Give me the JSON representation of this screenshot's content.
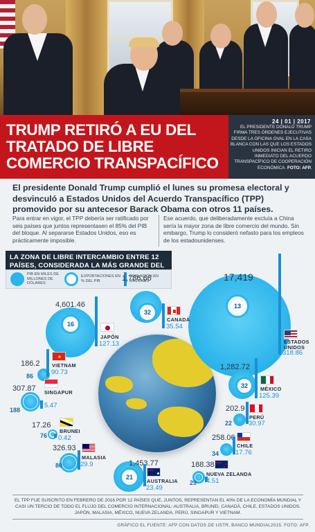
{
  "header": {
    "headline": "TRUMP RETIRÓ A EU DEL TRATADO DE LIBRE COMERCIO TRANSPACÍFICO",
    "date": "24 | 01 | 2017",
    "caption": "EL PRESIDENTE DONALD TRUMP FIRMA TRES ÓRDENES EJECUTIVAS DESDE LA OFICINA OVAL EN LA CASA BLANCA CON LAS QUE LOS ESTADOS UNIDOS INICIAN EL RETIRO INMEDIATO DEL ACUERDO TRANSPACÍFICO DE COOPERACIÓN ECONÓMICA.",
    "photo_credit": "FOTO: AFP."
  },
  "article": {
    "lead": "El presidente Donald Trump cumplió el lunes su promesa electoral y desvinculó a Estados Unidos del Acuerdo Transpacífico (TPP) promovido por su antecesor Barack Obama con otros 11 países.",
    "col_left": "Para entrar en vigor, el TPP debería ser ratificado por seis países que juntos representasen el 85% del PIB del bloque. Al separarse Estados Unidos, eso es prácticamente imposible.",
    "col_right": "Ese acuerdo, que deliberadamente excluía a China sería la mayor zona de libre comercio del mundo. Sin embargo, Trump lo consideró nefasto para los empleos de los estadounidenses."
  },
  "infographic": {
    "title": "LA ZONA DE LIBRE INTERCAMBIO ENTRE 12 PAÍSES, CONSIDERADA LA MÁS GRANDE DEL MUNDO",
    "legend": {
      "pib": "PIB EN MILES DE MILLONES DE DÓLARES",
      "exports": "EXPORTACIONES EN % DEL PIB",
      "population": "POBLACIÓN EN MILLONES"
    },
    "countries": [
      {
        "key": "usa",
        "name": "ESTADOS UNIDOS",
        "pib": "17,419",
        "exports": "13",
        "population": "318.86",
        "colors": [
          "#b22234",
          "#ffffff",
          "#3c3b6e"
        ]
      },
      {
        "key": "japan",
        "name": "JAPÓN",
        "pib": "4,601.46",
        "exports": "16",
        "population": "127.13",
        "colors": [
          "#ffffff",
          "#bc002d"
        ]
      },
      {
        "key": "canada",
        "name": "CANADÁ",
        "pib": "1,786.66",
        "exports": "32",
        "population": "35.54",
        "colors": [
          "#d52b1e",
          "#ffffff"
        ]
      },
      {
        "key": "mexico",
        "name": "MÉXICO",
        "pib": "1,282.72",
        "exports": "32",
        "population": "125.39",
        "colors": [
          "#006847",
          "#ffffff",
          "#ce1126"
        ]
      },
      {
        "key": "vietnam",
        "name": "VIETNAM",
        "pib": "186.2",
        "exports": "86",
        "population": "90.73",
        "colors": [
          "#da251d",
          "#ffcd00"
        ]
      },
      {
        "key": "singapore",
        "name": "SINGAPUR",
        "pib": "307.87",
        "exports": "188",
        "population": "5.47",
        "colors": [
          "#ed2939",
          "#ffffff"
        ]
      },
      {
        "key": "peru",
        "name": "PERÚ",
        "pib": "202.9",
        "exports": "22",
        "population": "30.97",
        "colors": [
          "#d91023",
          "#ffffff"
        ]
      },
      {
        "key": "brunei",
        "name": "BRUNEI",
        "pib": "17.26",
        "exports": "76",
        "population": "0.42",
        "colors": [
          "#f7e017",
          "#ffffff",
          "#000000"
        ]
      },
      {
        "key": "chile",
        "name": "CHILE",
        "pib": "258.06",
        "exports": "34",
        "population": "17.76",
        "colors": [
          "#ffffff",
          "#d52b1e",
          "#0039a6"
        ]
      },
      {
        "key": "malaysia",
        "name": "MALASIA",
        "pib": "326.93",
        "exports": "80",
        "population": "29.9",
        "colors": [
          "#cc0001",
          "#ffffff",
          "#010066"
        ]
      },
      {
        "key": "australia",
        "name": "AUSTRALIA",
        "pib": "1,453.77",
        "exports": "21",
        "population": "23.49",
        "colors": [
          "#012169",
          "#ffffff",
          "#e4002b"
        ]
      },
      {
        "key": "newzealand",
        "name": "NUEVA ZELANDA",
        "pib": "188.38",
        "exports": "29",
        "population": "4.51",
        "colors": [
          "#012169",
          "#ffffff",
          "#c8102e"
        ]
      }
    ],
    "note": "EL TPP FUE SUSCRITO EN FEBRERO DE 2016 POR 12 PAÍSES QUE, JUNTOS, REPRESENTAN EL 40% DE LA ECONOMÍA MUNDIAL Y CASI UN TERCIO DE TODO EL FLUJO DEL COMERCIO INTERNACIONAL: AUSTRALIA, BRUNEI, CANADÁ, CHILE, ESTADOS UNIDOS, JAPÓN, MALASIA, MÉXICO, NUEVA ZELANDA, PERÚ, SINGAPUR Y VIETNAM.",
    "credit": "GRÁFICO EL FUENTE: AFP CON DATOS DE USTR, BANCO MUNDIAL2015. FOTO: AFP."
  },
  "colors": {
    "accent_red": "#c3161c",
    "bubble_blue": "#2bb5ea",
    "dark": "#1e2c3a"
  }
}
